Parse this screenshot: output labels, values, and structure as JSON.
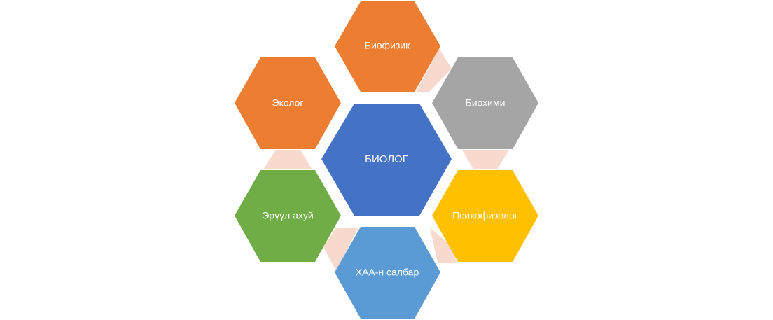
{
  "diagram": {
    "center": {
      "label": "БИОЛОГ",
      "color": "#4472C4"
    },
    "nodes": [
      {
        "id": "biofizik",
        "label": "Биофизик",
        "color": "#ED7D31"
      },
      {
        "id": "biohimi",
        "label": "Биохими",
        "color": "#A5A5A5"
      },
      {
        "id": "psihofiziolog",
        "label": "Психофизолог",
        "color": "#FFC000"
      },
      {
        "id": "haa-salbar",
        "label": "ХАА-н салбар",
        "color": "#5B9BD5"
      },
      {
        "id": "eruul-ahui",
        "label": "Эрүүл ахуй",
        "color": "#70AD47"
      },
      {
        "id": "ekolog",
        "label": "Эколог",
        "color": "#ED7D31"
      }
    ],
    "connector_color": "#F8D9CE"
  }
}
